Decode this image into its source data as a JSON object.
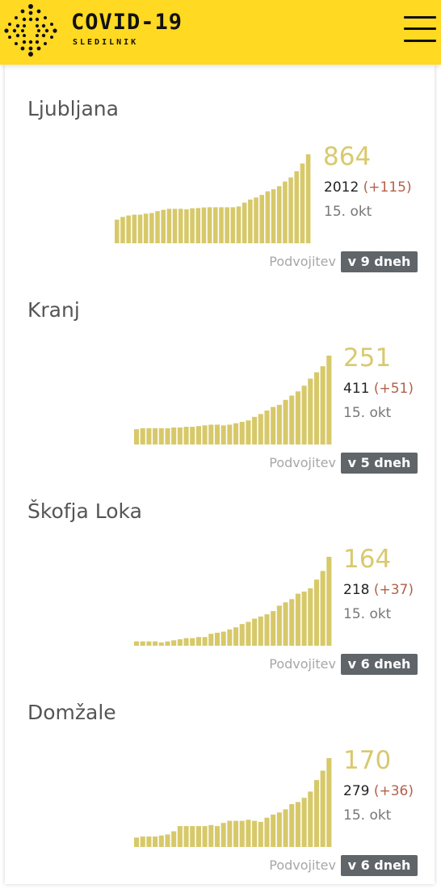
{
  "header": {
    "title": "COVID-19",
    "subtitle": "SLEDILNIK",
    "logo_icon": "dot-grid-logo-icon",
    "menu_icon": "hamburger-menu-icon",
    "background_color": "#ffd922"
  },
  "colors": {
    "bar": "#d7c96a",
    "value": "#d9c96f",
    "delta": "#b1614b",
    "badge": "#5f6569"
  },
  "cards": [
    {
      "city": "Ljubljana",
      "active": "864",
      "total": "2012",
      "delta": "(+115)",
      "date": "15. okt",
      "doubling_label": "Podvojitev",
      "doubling_value": "v 9 dneh",
      "chart_data": {
        "type": "bar",
        "values": [
          230,
          256,
          270,
          278,
          278,
          288,
          294,
          312,
          325,
          335,
          335,
          335,
          330,
          340,
          342,
          348,
          350,
          350,
          350,
          350,
          350,
          358,
          395,
          425,
          445,
          470,
          505,
          525,
          555,
          600,
          640,
          700,
          775,
          864
        ]
      }
    },
    {
      "city": "Kranj",
      "active": "251",
      "total": "411",
      "delta": "(+51)",
      "date": "15. okt",
      "doubling_label": "Podvojitev",
      "doubling_value": "v 5 dneh",
      "chart_data": {
        "type": "bar",
        "values": [
          43,
          46,
          46,
          46,
          46,
          46,
          48,
          48,
          50,
          50,
          52,
          54,
          56,
          56,
          54,
          56,
          60,
          64,
          68,
          78,
          86,
          96,
          106,
          112,
          126,
          138,
          150,
          166,
          186,
          204,
          221,
          251
        ]
      }
    },
    {
      "city": "Škofja Loka",
      "active": "164",
      "total": "218",
      "delta": "(+37)",
      "date": "15. okt",
      "doubling_label": "Podvojitev",
      "doubling_value": "v 6 dneh",
      "chart_data": {
        "type": "bar",
        "values": [
          8,
          8,
          8,
          8,
          6,
          8,
          10,
          12,
          14,
          14,
          16,
          16,
          22,
          24,
          26,
          30,
          34,
          40,
          44,
          50,
          54,
          58,
          64,
          74,
          80,
          86,
          96,
          100,
          106,
          122,
          138,
          164
        ]
      }
    },
    {
      "city": "Domžale",
      "active": "170",
      "total": "279",
      "delta": "(+36)",
      "date": "15. okt",
      "doubling_label": "Podvojitev",
      "doubling_value": "v 6 dneh",
      "chart_data": {
        "type": "bar",
        "values": [
          18,
          20,
          20,
          20,
          22,
          24,
          30,
          40,
          40,
          40,
          40,
          40,
          42,
          40,
          46,
          50,
          50,
          50,
          52,
          50,
          48,
          56,
          62,
          66,
          72,
          82,
          86,
          94,
          106,
          128,
          146,
          170
        ]
      }
    }
  ]
}
